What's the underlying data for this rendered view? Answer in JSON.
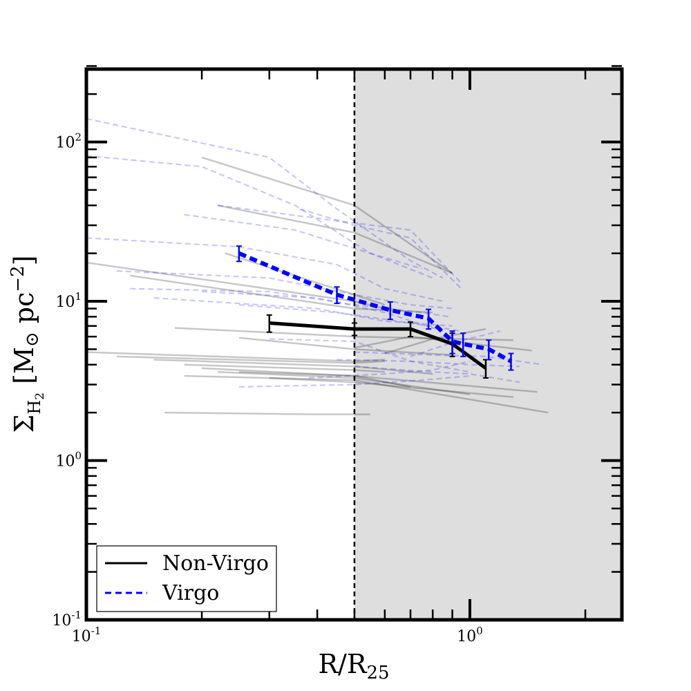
{
  "chart_data": {
    "type": "line",
    "xscale": "log",
    "yscale": "log",
    "xlim": [
      0.1,
      2.5
    ],
    "ylim": [
      0.1,
      300
    ],
    "xlabel": "R/R25",
    "ylabel": "Σ H2 [M⊙ pc−2]",
    "x_tick_labels": [
      {
        "value": 0.1,
        "base": "10",
        "exp": "-1"
      },
      {
        "value": 1.0,
        "base": "10",
        "exp": "0"
      }
    ],
    "y_tick_labels": [
      {
        "value": 0.1,
        "base": "10",
        "exp": "-1"
      },
      {
        "value": 1,
        "base": "10",
        "exp": "0"
      },
      {
        "value": 10,
        "base": "10",
        "exp": "1"
      },
      {
        "value": 100,
        "base": "10",
        "exp": "2"
      }
    ],
    "shaded_region_x": [
      0.5,
      2.5
    ],
    "vertical_line_x": 0.5,
    "legend": {
      "position": "lower-left",
      "entries": [
        {
          "label": "Non-Virgo",
          "color": "#000000",
          "style": "solid"
        },
        {
          "label": "Virgo",
          "color": "#0000ff",
          "style": "dashed"
        }
      ]
    },
    "series": [
      {
        "name": "Non-Virgo",
        "color": "#000000",
        "style": "solid",
        "x": [
          0.3,
          0.5,
          0.7,
          0.9,
          1.1
        ],
        "y": [
          7.3,
          6.7,
          6.7,
          5.4,
          3.8
        ],
        "yerr": [
          0.9,
          0.6,
          0.7,
          0.9,
          0.5
        ]
      },
      {
        "name": "Virgo",
        "color": "#0000ff",
        "style": "dashed",
        "x": [
          0.25,
          0.45,
          0.62,
          0.78,
          0.9,
          0.96,
          1.12,
          1.28
        ],
        "y": [
          20,
          11,
          8.8,
          7.8,
          5.6,
          5.4,
          5.0,
          4.2
        ],
        "yerr": [
          2.2,
          1.3,
          1.1,
          1.1,
          0.9,
          0.9,
          0.7,
          0.5
        ]
      }
    ],
    "individual_non_virgo": [
      {
        "x": [
          0.2,
          0.5,
          0.9
        ],
        "y": [
          80,
          40,
          15
        ]
      },
      {
        "x": [
          0.22,
          0.5,
          0.9
        ],
        "y": [
          40,
          27,
          15
        ]
      },
      {
        "x": [
          0.1,
          0.5,
          0.6
        ],
        "y": [
          17.5,
          10,
          9
        ]
      },
      {
        "x": [
          0.23,
          0.5,
          0.6
        ],
        "y": [
          20,
          11,
          9.5
        ]
      },
      {
        "x": [
          0.13,
          0.5,
          0.8
        ],
        "y": [
          14.5,
          9,
          8.5
        ]
      },
      {
        "x": [
          0.17,
          0.5,
          1.3
        ],
        "y": [
          6.8,
          6,
          5.7
        ]
      },
      {
        "x": [
          0.25,
          0.5,
          0.9
        ],
        "y": [
          5.9,
          5,
          4.6
        ]
      },
      {
        "x": [
          0.1,
          0.5,
          0.6
        ],
        "y": [
          4.8,
          4.2,
          4.3
        ]
      },
      {
        "x": [
          0.12,
          0.5,
          0.6
        ],
        "y": [
          4.5,
          4.1,
          4.2
        ]
      },
      {
        "x": [
          0.15,
          0.5,
          0.8
        ],
        "y": [
          4.3,
          3.9,
          3.5
        ]
      },
      {
        "x": [
          0.18,
          0.5,
          0.6
        ],
        "y": [
          4.0,
          3.7,
          3.6
        ]
      },
      {
        "x": [
          0.2,
          0.5,
          1.5
        ],
        "y": [
          3.8,
          3.4,
          2.7
        ]
      },
      {
        "x": [
          0.25,
          0.5,
          0.7
        ],
        "y": [
          3.6,
          3.4,
          2.9
        ]
      },
      {
        "x": [
          0.3,
          0.5,
          1.3
        ],
        "y": [
          3.3,
          3.1,
          2.5
        ]
      },
      {
        "x": [
          0.22,
          0.5,
          1.0
        ],
        "y": [
          3.6,
          3.3,
          2.6
        ]
      },
      {
        "x": [
          0.18,
          0.5,
          1.6
        ],
        "y": [
          3.4,
          3.2,
          2.0
        ]
      },
      {
        "x": [
          0.5,
          0.7,
          1.45
        ],
        "y": [
          5.1,
          6.0,
          4.9
        ]
      },
      {
        "x": [
          0.6,
          0.8,
          1.1
        ],
        "y": [
          4.7,
          5.8,
          6.7
        ]
      },
      {
        "x": [
          0.16,
          0.4,
          0.55
        ],
        "y": [
          2.0,
          1.95,
          1.95
        ]
      }
    ],
    "individual_virgo": [
      {
        "x": [
          0.1,
          0.3,
          0.45,
          0.7,
          0.85
        ],
        "y": [
          140,
          80,
          38,
          18,
          14
        ]
      },
      {
        "x": [
          0.1,
          0.2,
          0.35,
          0.55,
          0.75
        ],
        "y": [
          82,
          70,
          40,
          20,
          16
        ]
      },
      {
        "x": [
          0.36,
          0.5,
          0.7,
          0.95
        ],
        "y": [
          38,
          30,
          25,
          12
        ]
      },
      {
        "x": [
          0.22,
          0.45,
          0.7,
          0.95
        ],
        "y": [
          40,
          32,
          28,
          13
        ]
      },
      {
        "x": [
          0.18,
          0.35,
          0.55,
          0.8
        ],
        "y": [
          35,
          28,
          20,
          14
        ]
      },
      {
        "x": [
          0.1,
          0.25,
          0.45,
          0.6,
          0.85
        ],
        "y": [
          25,
          22,
          17,
          12,
          10
        ]
      },
      {
        "x": [
          0.12,
          0.3,
          0.5,
          0.7,
          0.9
        ],
        "y": [
          15.5,
          14,
          11,
          9.5,
          9
        ]
      },
      {
        "x": [
          0.13,
          0.3,
          0.5,
          0.75,
          0.88
        ],
        "y": [
          12,
          11.5,
          9.5,
          8.5,
          8
        ]
      },
      {
        "x": [
          0.2,
          0.4,
          0.6,
          0.85
        ],
        "y": [
          11.5,
          10.5,
          8.5,
          6.5
        ]
      },
      {
        "x": [
          0.15,
          0.4,
          0.6,
          0.9
        ],
        "y": [
          10.5,
          9,
          7.5,
          7
        ]
      },
      {
        "x": [
          0.25,
          0.45,
          0.65,
          0.95
        ],
        "y": [
          9.5,
          8.5,
          7.5,
          6.5
        ]
      },
      {
        "x": [
          0.3,
          0.5,
          0.7,
          1.0
        ],
        "y": [
          5.8,
          5.6,
          4.2,
          3.6
        ]
      },
      {
        "x": [
          0.5,
          0.8,
          1.1,
          1.55
        ],
        "y": [
          4.8,
          4.6,
          4.5,
          4.0
        ]
      },
      {
        "x": [
          0.45,
          0.7,
          1.0,
          1.35
        ],
        "y": [
          4.3,
          4.2,
          4.0,
          3.9
        ]
      },
      {
        "x": [
          0.5,
          0.8,
          1.0,
          1.35
        ],
        "y": [
          3.9,
          3.6,
          3.5,
          3.1
        ]
      },
      {
        "x": [
          0.25,
          0.5,
          0.75,
          1.0
        ],
        "y": [
          2.9,
          3.0,
          3.2,
          3.4
        ]
      },
      {
        "x": [
          0.7,
          0.9,
          1.2
        ],
        "y": [
          4.5,
          5.5,
          6.5
        ]
      },
      {
        "x": [
          0.38,
          0.6,
          0.8,
          1.0
        ],
        "y": [
          3.3,
          3.5,
          3.7,
          4.2
        ]
      }
    ]
  }
}
